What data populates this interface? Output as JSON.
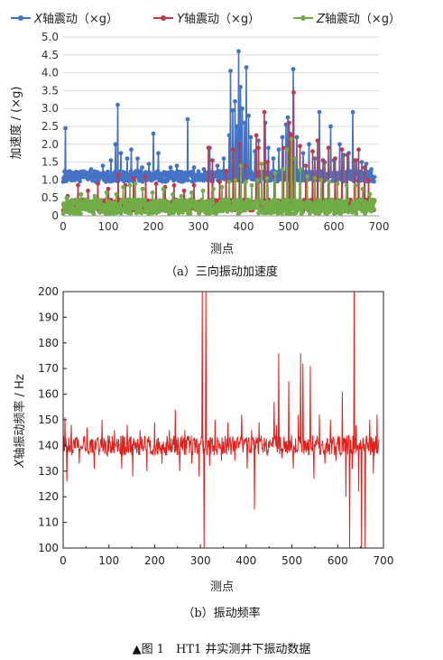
{
  "figure_title": "▲图 1　HT1 井实测井下振动数据",
  "chart_data": [
    {
      "type": "line",
      "caption": "（a）三向振动加速度",
      "xlabel": "测点",
      "ylabel": "加速度 / (×g)",
      "xlim": [
        0,
        700
      ],
      "ylim": [
        0,
        5.0
      ],
      "x_ticks": [
        "0",
        "100",
        "200",
        "300",
        "400",
        "500",
        "600",
        "700"
      ],
      "y_ticks": [
        "0",
        "0.5",
        "1.0",
        "1.5",
        "2.0",
        "2.5",
        "3.0",
        "3.5",
        "4.0",
        "4.5",
        "5.0"
      ],
      "grid": true,
      "legend_position": "top",
      "series": [
        {
          "name": "X轴震动（×g）",
          "legend_var": "X",
          "legend_text": "轴震动（×g）",
          "color": "#4472c4",
          "markers": true,
          "baseline": 1.1,
          "jitter": 0.15,
          "spikes": [
            [
              5,
              2.45
            ],
            [
              22,
              1.2
            ],
            [
              62,
              1.3
            ],
            [
              88,
              1.4
            ],
            [
              106,
              1.55
            ],
            [
              116,
              2.0
            ],
            [
              121,
              3.1
            ],
            [
              128,
              1.75
            ],
            [
              142,
              1.6
            ],
            [
              151,
              1.85
            ],
            [
              165,
              1.6
            ],
            [
              175,
              1.35
            ],
            [
              190,
              1.45
            ],
            [
              200,
              2.3
            ],
            [
              211,
              1.75
            ],
            [
              238,
              1.35
            ],
            [
              252,
              1.4
            ],
            [
              276,
              2.7
            ],
            [
              290,
              1.35
            ],
            [
              312,
              1.3
            ],
            [
              325,
              1.9
            ],
            [
              342,
              1.4
            ],
            [
              356,
              1.6
            ],
            [
              368,
              2.25
            ],
            [
              371,
              4.05
            ],
            [
              376,
              2.95
            ],
            [
              381,
              3.2
            ],
            [
              385,
              2.5
            ],
            [
              389,
              4.6
            ],
            [
              393,
              3.6
            ],
            [
              397,
              3.0
            ],
            [
              402,
              2.6
            ],
            [
              406,
              4.15
            ],
            [
              411,
              2.8
            ],
            [
              416,
              2.2
            ],
            [
              425,
              1.8
            ],
            [
              433,
              2.1
            ],
            [
              448,
              2.6
            ],
            [
              455,
              1.9
            ],
            [
              466,
              1.6
            ],
            [
              478,
              1.85
            ],
            [
              486,
              2.2
            ],
            [
              494,
              2.55
            ],
            [
              498,
              2.75
            ],
            [
              503,
              2.3
            ],
            [
              510,
              4.1
            ],
            [
              518,
              2.2
            ],
            [
              532,
              1.75
            ],
            [
              545,
              2.0
            ],
            [
              558,
              1.6
            ],
            [
              568,
              2.9
            ],
            [
              580,
              1.5
            ],
            [
              593,
              2.5
            ],
            [
              600,
              1.55
            ],
            [
              613,
              2.0
            ],
            [
              622,
              1.7
            ],
            [
              633,
              1.75
            ],
            [
              642,
              2.9
            ],
            [
              650,
              1.55
            ],
            [
              662,
              1.5
            ],
            [
              672,
              1.45
            ],
            [
              683,
              1.3
            ]
          ]
        },
        {
          "name": "Y轴震动（×g）",
          "legend_var": "Y",
          "legend_text": "轴震动（×g）",
          "color": "#c0394b",
          "markers": true,
          "baseline": 0.3,
          "jitter": 0.15,
          "spikes": [
            [
              10,
              0.55
            ],
            [
              33,
              0.85
            ],
            [
              55,
              0.7
            ],
            [
              77,
              0.9
            ],
            [
              100,
              0.75
            ],
            [
              122,
              1.15
            ],
            [
              138,
              0.85
            ],
            [
              156,
              1.05
            ],
            [
              183,
              1.1
            ],
            [
              206,
              0.9
            ],
            [
              226,
              0.8
            ],
            [
              246,
              0.85
            ],
            [
              268,
              0.7
            ],
            [
              290,
              0.85
            ],
            [
              322,
              1.9
            ],
            [
              331,
              1.55
            ],
            [
              347,
              0.95
            ],
            [
              361,
              1.25
            ],
            [
              377,
              1.85
            ],
            [
              391,
              2.0
            ],
            [
              403,
              1.4
            ],
            [
              428,
              2.25
            ],
            [
              433,
              1.9
            ],
            [
              446,
              2.9
            ],
            [
              453,
              1.5
            ],
            [
              468,
              1.1
            ],
            [
              488,
              1.9
            ],
            [
              501,
              2.6
            ],
            [
              505,
              2.25
            ],
            [
              511,
              3.45
            ],
            [
              525,
              1.95
            ],
            [
              538,
              1.4
            ],
            [
              553,
              1.8
            ],
            [
              564,
              2.1
            ],
            [
              576,
              1.55
            ],
            [
              588,
              1.9
            ],
            [
              603,
              1.6
            ],
            [
              618,
              1.85
            ],
            [
              630,
              1.7
            ],
            [
              646,
              1.55
            ],
            [
              655,
              1.85
            ],
            [
              668,
              1.35
            ],
            [
              677,
              1.0
            ]
          ]
        },
        {
          "name": "Z轴震动（×g）",
          "legend_var": "Z",
          "legend_text": "轴震动（×g）",
          "color": "#70ad47",
          "markers": true,
          "baseline": 0.25,
          "jitter": 0.2,
          "spikes": [
            [
              8,
              0.5
            ],
            [
              40,
              0.6
            ],
            [
              70,
              0.55
            ],
            [
              96,
              0.65
            ],
            [
              118,
              0.6
            ],
            [
              133,
              0.8
            ],
            [
              148,
              0.85
            ],
            [
              160,
              0.9
            ],
            [
              176,
              0.75
            ],
            [
              198,
              0.65
            ],
            [
              222,
              0.75
            ],
            [
              243,
              0.6
            ],
            [
              262,
              0.55
            ],
            [
              285,
              0.65
            ],
            [
              310,
              0.7
            ],
            [
              333,
              0.75
            ],
            [
              352,
              0.8
            ],
            [
              368,
              0.95
            ],
            [
              382,
              1.0
            ],
            [
              394,
              1.4
            ],
            [
              405,
              0.95
            ],
            [
              418,
              0.85
            ],
            [
              431,
              1.0
            ],
            [
              440,
              1.45
            ],
            [
              452,
              1.05
            ],
            [
              470,
              1.2
            ],
            [
              486,
              1.3
            ],
            [
              496,
              1.85
            ],
            [
              506,
              2.15
            ],
            [
              514,
              1.6
            ],
            [
              526,
              1.3
            ],
            [
              541,
              1.1
            ],
            [
              558,
              1.05
            ],
            [
              572,
              1.0
            ],
            [
              590,
              0.95
            ],
            [
              608,
              0.9
            ],
            [
              628,
              0.85
            ],
            [
              648,
              0.85
            ],
            [
              664,
              0.75
            ],
            [
              680,
              0.6
            ]
          ]
        }
      ]
    },
    {
      "type": "line",
      "caption": "（b）振动频率",
      "xlabel": "测点",
      "ylabel": "X轴振动频率 / Hz",
      "ylabel_var": "X",
      "ylabel_text": "轴振动频率 / Hz",
      "xlim": [
        0,
        700
      ],
      "ylim": [
        100,
        200
      ],
      "x_ticks": [
        "0",
        "100",
        "200",
        "300",
        "400",
        "500",
        "600",
        "700"
      ],
      "y_ticks": [
        "100",
        "110",
        "120",
        "130",
        "140",
        "150",
        "160",
        "170",
        "180",
        "190",
        "200"
      ],
      "grid": false,
      "series": [
        {
          "name": "X轴振动频率",
          "color": "#e0201d",
          "markers": false,
          "baseline": 140,
          "jitter": 4,
          "spikes": [
            [
              4,
              151
            ],
            [
              8,
              126
            ],
            [
              18,
              148
            ],
            [
              35,
              133
            ],
            [
              52,
              147
            ],
            [
              68,
              131
            ],
            [
              85,
              150
            ],
            [
              97,
              136
            ],
            [
              112,
              146
            ],
            [
              128,
              131
            ],
            [
              140,
              148
            ],
            [
              152,
              128
            ],
            [
              168,
              146
            ],
            [
              183,
              130
            ],
            [
              200,
              149
            ],
            [
              216,
              133
            ],
            [
              232,
              146
            ],
            [
              245,
              154
            ],
            [
              255,
              130
            ],
            [
              266,
              146
            ],
            [
              281,
              133
            ],
            [
              297,
              128
            ],
            [
              304,
              200
            ],
            [
              308,
              100
            ],
            [
              312,
              200
            ],
            [
              320,
              132
            ],
            [
              332,
              150
            ],
            [
              346,
              134
            ],
            [
              360,
              149
            ],
            [
              375,
              134
            ],
            [
              390,
              152
            ],
            [
              402,
              131
            ],
            [
              412,
              146
            ],
            [
              418,
              115
            ],
            [
              428,
              149
            ],
            [
              446,
              136
            ],
            [
              461,
              157
            ],
            [
              466,
              148
            ],
            [
              471,
              176
            ],
            [
              478,
              135
            ],
            [
              493,
              165
            ],
            [
              503,
              131
            ],
            [
              514,
              152
            ],
            [
              519,
              176
            ],
            [
              524,
              172
            ],
            [
              532,
              138
            ],
            [
              540,
              171
            ],
            [
              548,
              127
            ],
            [
              560,
              152
            ],
            [
              572,
              133
            ],
            [
              584,
              150
            ],
            [
              596,
              134
            ],
            [
              610,
              161
            ],
            [
              618,
              120
            ],
            [
              626,
              100
            ],
            [
              632,
              131
            ],
            [
              636,
              200
            ],
            [
              640,
              148
            ],
            [
              646,
              122
            ],
            [
              652,
              100
            ],
            [
              660,
              100
            ],
            [
              664,
              141
            ],
            [
              670,
              150
            ],
            [
              678,
              129
            ],
            [
              686,
              152
            ],
            [
              694,
              141
            ],
            [
              698,
              115
            ]
          ]
        }
      ]
    }
  ]
}
